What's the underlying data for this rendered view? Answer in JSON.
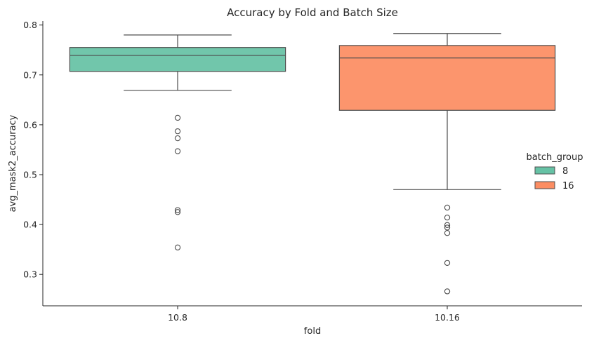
{
  "chart_data": {
    "type": "box",
    "title": "Accuracy by Fold and Batch Size",
    "xlabel": "fold",
    "ylabel": "avg_mask2_accuracy",
    "categories": [
      "10.8",
      "10.16"
    ],
    "ylim": [
      0.237,
      0.808
    ],
    "yticks": [
      0.3,
      0.4,
      0.5,
      0.6,
      0.7,
      0.8
    ],
    "ytick_labels": [
      "0.3",
      "0.4",
      "0.5",
      "0.6",
      "0.7",
      "0.8"
    ],
    "grid": false,
    "legend": {
      "title": "batch_group",
      "placement": "right",
      "entries": [
        "8",
        "16"
      ]
    },
    "series": [
      {
        "name": "8",
        "category": "10.8",
        "color": "#66c2a5",
        "whisker_low": 0.669,
        "q1": 0.707,
        "median": 0.739,
        "q3": 0.755,
        "whisker_high": 0.78,
        "outliers": [
          0.614,
          0.587,
          0.573,
          0.547,
          0.429,
          0.425,
          0.354
        ]
      },
      {
        "name": "16",
        "category": "10.16",
        "color": "#fc8d62",
        "whisker_low": 0.47,
        "q1": 0.629,
        "median": 0.734,
        "q3": 0.759,
        "whisker_high": 0.783,
        "outliers": [
          0.434,
          0.414,
          0.399,
          0.394,
          0.383,
          0.323,
          0.266
        ]
      }
    ]
  }
}
